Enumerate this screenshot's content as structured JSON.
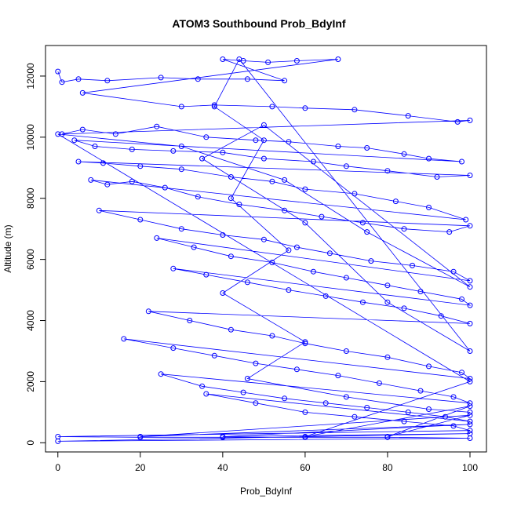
{
  "chart_data": {
    "type": "scatter",
    "title": "ATOM3 Southbound Prob_BdyInf",
    "xlabel": "Prob_BdyInf",
    "ylabel": "Altitude (m)",
    "xlim": [
      -3,
      104
    ],
    "ylim": [
      -300,
      13000
    ],
    "x_ticks": [
      0,
      20,
      40,
      60,
      80,
      100
    ],
    "y_ticks": [
      0,
      2000,
      4000,
      6000,
      8000,
      10000,
      12000
    ],
    "grid": false,
    "legend": "none",
    "series_color": "#0000ff",
    "points_connected": true,
    "series": [
      {
        "values": [
          [
            0,
            12150
          ],
          [
            1,
            11800
          ],
          [
            5,
            11900
          ],
          [
            12,
            11850
          ],
          [
            25,
            11950
          ],
          [
            34,
            11900
          ],
          [
            46,
            11900
          ],
          [
            55,
            11850
          ],
          [
            40,
            12550
          ],
          [
            45,
            12500
          ],
          [
            51,
            12450
          ],
          [
            58,
            12500
          ],
          [
            68,
            12550
          ],
          [
            6,
            11450
          ],
          [
            30,
            11000
          ],
          [
            38,
            11050
          ],
          [
            52,
            11000
          ],
          [
            60,
            10950
          ],
          [
            72,
            10900
          ],
          [
            85,
            10700
          ],
          [
            97,
            10500
          ],
          [
            100,
            10550
          ],
          [
            1,
            10100
          ],
          [
            6,
            10250
          ],
          [
            14,
            10100
          ],
          [
            24,
            10350
          ],
          [
            36,
            10000
          ],
          [
            48,
            9900
          ],
          [
            56,
            9850
          ],
          [
            68,
            9700
          ],
          [
            75,
            9650
          ],
          [
            84,
            9450
          ],
          [
            90,
            9300
          ],
          [
            98,
            9200
          ],
          [
            4,
            9900
          ],
          [
            9,
            9700
          ],
          [
            18,
            9600
          ],
          [
            28,
            9550
          ],
          [
            40,
            9500
          ],
          [
            50,
            9300
          ],
          [
            62,
            9200
          ],
          [
            70,
            9050
          ],
          [
            80,
            8900
          ],
          [
            92,
            8700
          ],
          [
            100,
            8750
          ],
          [
            5,
            9200
          ],
          [
            11,
            9150
          ],
          [
            20,
            9050
          ],
          [
            30,
            8950
          ],
          [
            42,
            8700
          ],
          [
            52,
            8550
          ],
          [
            60,
            8300
          ],
          [
            72,
            8150
          ],
          [
            82,
            7900
          ],
          [
            90,
            7700
          ],
          [
            99,
            7300
          ],
          [
            8,
            8600
          ],
          [
            12,
            8450
          ],
          [
            18,
            8550
          ],
          [
            26,
            8350
          ],
          [
            34,
            8050
          ],
          [
            44,
            7800
          ],
          [
            55,
            7600
          ],
          [
            64,
            7400
          ],
          [
            74,
            7200
          ],
          [
            84,
            7000
          ],
          [
            95,
            6900
          ],
          [
            100,
            7100
          ],
          [
            10,
            7600
          ],
          [
            20,
            7300
          ],
          [
            30,
            7000
          ],
          [
            40,
            6800
          ],
          [
            50,
            6650
          ],
          [
            58,
            6400
          ],
          [
            66,
            6200
          ],
          [
            76,
            5950
          ],
          [
            86,
            5800
          ],
          [
            96,
            5600
          ],
          [
            100,
            5300
          ],
          [
            24,
            6700
          ],
          [
            33,
            6400
          ],
          [
            42,
            6100
          ],
          [
            52,
            5900
          ],
          [
            62,
            5600
          ],
          [
            70,
            5400
          ],
          [
            80,
            5150
          ],
          [
            88,
            4950
          ],
          [
            98,
            4700
          ],
          [
            100,
            4500
          ],
          [
            28,
            5700
          ],
          [
            36,
            5500
          ],
          [
            46,
            5250
          ],
          [
            56,
            5000
          ],
          [
            65,
            4800
          ],
          [
            74,
            4600
          ],
          [
            84,
            4400
          ],
          [
            93,
            4150
          ],
          [
            100,
            3900
          ],
          [
            22,
            4300
          ],
          [
            32,
            4000
          ],
          [
            42,
            3700
          ],
          [
            52,
            3500
          ],
          [
            60,
            3250
          ],
          [
            70,
            3000
          ],
          [
            80,
            2800
          ],
          [
            90,
            2500
          ],
          [
            98,
            2300
          ],
          [
            100,
            2100
          ],
          [
            16,
            3400
          ],
          [
            28,
            3100
          ],
          [
            38,
            2850
          ],
          [
            48,
            2600
          ],
          [
            58,
            2400
          ],
          [
            68,
            2200
          ],
          [
            78,
            1950
          ],
          [
            88,
            1700
          ],
          [
            96,
            1500
          ],
          [
            100,
            1300
          ],
          [
            25,
            2250
          ],
          [
            35,
            1850
          ],
          [
            45,
            1650
          ],
          [
            55,
            1450
          ],
          [
            65,
            1300
          ],
          [
            75,
            1150
          ],
          [
            85,
            1000
          ],
          [
            94,
            850
          ],
          [
            100,
            700
          ],
          [
            36,
            1600
          ],
          [
            48,
            1300
          ],
          [
            60,
            1000
          ],
          [
            72,
            850
          ],
          [
            84,
            700
          ],
          [
            96,
            550
          ],
          [
            100,
            400
          ],
          [
            0,
            200
          ],
          [
            20,
            180
          ],
          [
            40,
            180
          ],
          [
            60,
            180
          ],
          [
            80,
            180
          ],
          [
            100,
            150
          ],
          [
            0,
            50
          ],
          [
            100,
            300
          ],
          [
            40,
            200
          ],
          [
            100,
            600
          ],
          [
            20,
            200
          ],
          [
            100,
            900
          ],
          [
            80,
            200
          ],
          [
            100,
            1200
          ],
          [
            60,
            200
          ],
          [
            100,
            2000
          ],
          [
            0,
            10100
          ],
          [
            30,
            9700
          ],
          [
            55,
            8600
          ],
          [
            75,
            6900
          ],
          [
            100,
            5100
          ],
          [
            50,
            10400
          ],
          [
            35,
            9300
          ],
          [
            60,
            7200
          ],
          [
            80,
            4600
          ],
          [
            100,
            3000
          ],
          [
            44,
            12550
          ],
          [
            38,
            11000
          ],
          [
            50,
            9900
          ],
          [
            42,
            8000
          ],
          [
            56,
            6300
          ],
          [
            40,
            4900
          ],
          [
            60,
            3300
          ],
          [
            46,
            2100
          ],
          [
            70,
            1500
          ],
          [
            90,
            1100
          ],
          [
            100,
            1000
          ]
        ]
      }
    ]
  }
}
